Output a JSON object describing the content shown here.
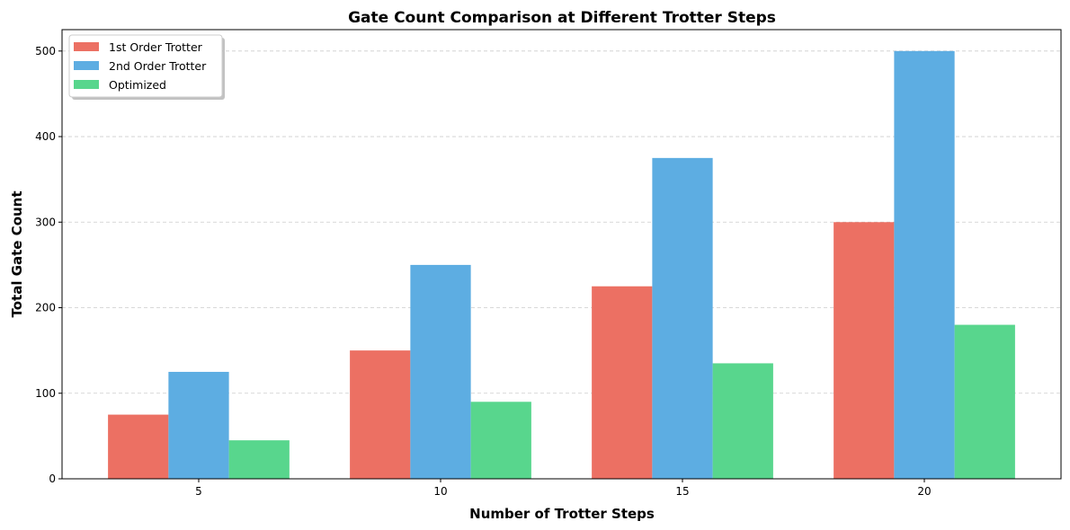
{
  "chart_data": {
    "type": "bar",
    "title": "Gate Count Comparison at Different Trotter Steps",
    "xlabel": "Number of Trotter Steps",
    "ylabel": "Total Gate Count",
    "categories": [
      "5",
      "10",
      "15",
      "20"
    ],
    "series": [
      {
        "name": "1st Order Trotter",
        "values": [
          75,
          150,
          225,
          300
        ],
        "color": "#ec7063"
      },
      {
        "name": "2nd Order Trotter",
        "values": [
          125,
          250,
          375,
          500
        ],
        "color": "#5dade2"
      },
      {
        "name": "Optimized",
        "values": [
          45,
          90,
          135,
          180
        ],
        "color": "#58d68d"
      }
    ],
    "ylim": [
      0,
      525
    ],
    "yticks": [
      0,
      100,
      200,
      300,
      400,
      500
    ],
    "grid": "y, dashed",
    "legend": "top-left"
  }
}
